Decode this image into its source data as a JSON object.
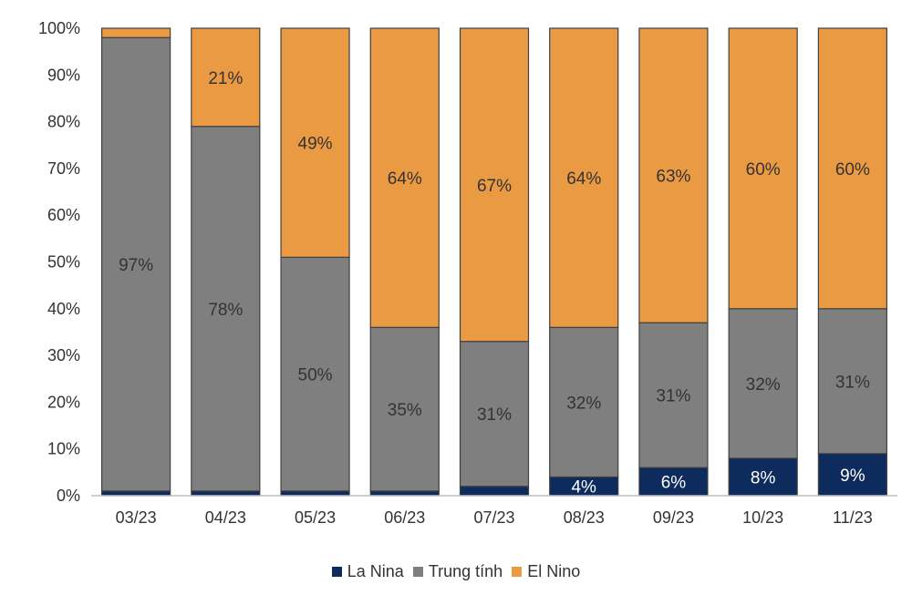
{
  "chart_data": {
    "type": "bar",
    "stacked": true,
    "percent": true,
    "categories": [
      "03/23",
      "04/23",
      "05/23",
      "06/23",
      "07/23",
      "08/23",
      "09/23",
      "10/23",
      "11/23"
    ],
    "series": [
      {
        "name": "La Nina",
        "color": "#0d2b5c",
        "values": [
          1,
          1,
          1,
          1,
          2,
          4,
          6,
          8,
          9
        ],
        "labels": [
          "",
          "",
          "",
          "",
          "",
          "4%",
          "6%",
          "8%",
          "9%"
        ]
      },
      {
        "name": "Trung tính",
        "color": "#7f7f7f",
        "values": [
          97,
          78,
          50,
          35,
          31,
          32,
          31,
          32,
          31
        ],
        "labels": [
          "97%",
          "78%",
          "50%",
          "35%",
          "31%",
          "32%",
          "31%",
          "32%",
          "31%"
        ]
      },
      {
        "name": "El Nino",
        "color": "#eb9a44",
        "values": [
          2,
          21,
          49,
          64,
          67,
          64,
          63,
          60,
          60
        ],
        "labels": [
          "",
          "21%",
          "49%",
          "64%",
          "67%",
          "64%",
          "63%",
          "60%",
          "60%"
        ]
      }
    ],
    "yticks": [
      "0%",
      "10%",
      "20%",
      "30%",
      "40%",
      "50%",
      "60%",
      "70%",
      "80%",
      "90%",
      "100%"
    ],
    "ylim": [
      0,
      100
    ],
    "grid": false,
    "legend_position": "bottom"
  }
}
